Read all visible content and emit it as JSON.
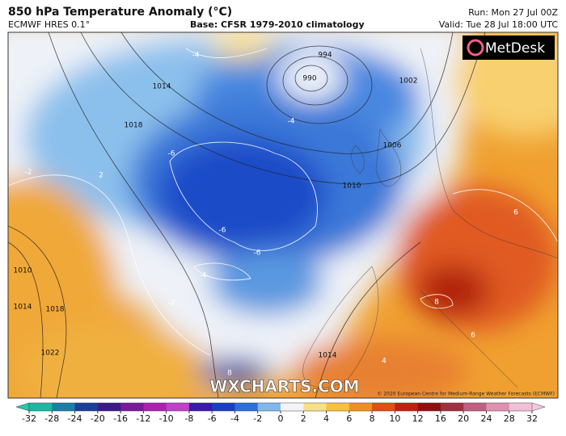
{
  "header": {
    "title": "850 hPa Temperature Anomaly (°C)",
    "model": "ECMWF HRES 0.1°",
    "base": "Base: CFSR 1979-2010 climatology",
    "run": "Run: Mon 27 Jul 00Z",
    "valid": "Valid: Tue 28 Jul 18:00 UTC"
  },
  "logo": "MetDesk",
  "watermark": "WXCHARTS.COM",
  "copyright": "© 2020 European Centre for Medium-Range Weather Forecasts (ECMWF)",
  "map": {
    "isobar_labels": [
      "994",
      "990",
      "1014",
      "1018",
      "1010",
      "1006",
      "1002",
      "1010",
      "1014",
      "1018",
      "1022",
      "1014"
    ],
    "temperature_labels": [
      "-4",
      "-4",
      "-6",
      "-2",
      "2",
      "-6",
      "-6",
      "-4",
      "-2",
      "6",
      "8",
      "6",
      "4",
      "8"
    ]
  },
  "colorbar": {
    "ticks": [
      -32,
      -28,
      -24,
      -20,
      -16,
      -12,
      -10,
      -8,
      -6,
      -4,
      -2,
      0,
      2,
      4,
      6,
      8,
      10,
      12,
      16,
      20,
      24,
      28,
      32
    ],
    "colors": [
      "#1ab9a0",
      "#1a7fa8",
      "#1a3f9a",
      "#3a1a8a",
      "#7a1a9a",
      "#b020b0",
      "#c040c8",
      "#3a1aa8",
      "#1a40c0",
      "#2a70d8",
      "#80b8ec",
      "#f4f4f8",
      "#f8e088",
      "#f8c040",
      "#f09020",
      "#e05010",
      "#c02010",
      "#901010",
      "#a03040",
      "#c06080",
      "#e090b0",
      "#f0c0d8"
    ],
    "low_color": "#20c8a8",
    "high_color": "#f4c8e0"
  }
}
